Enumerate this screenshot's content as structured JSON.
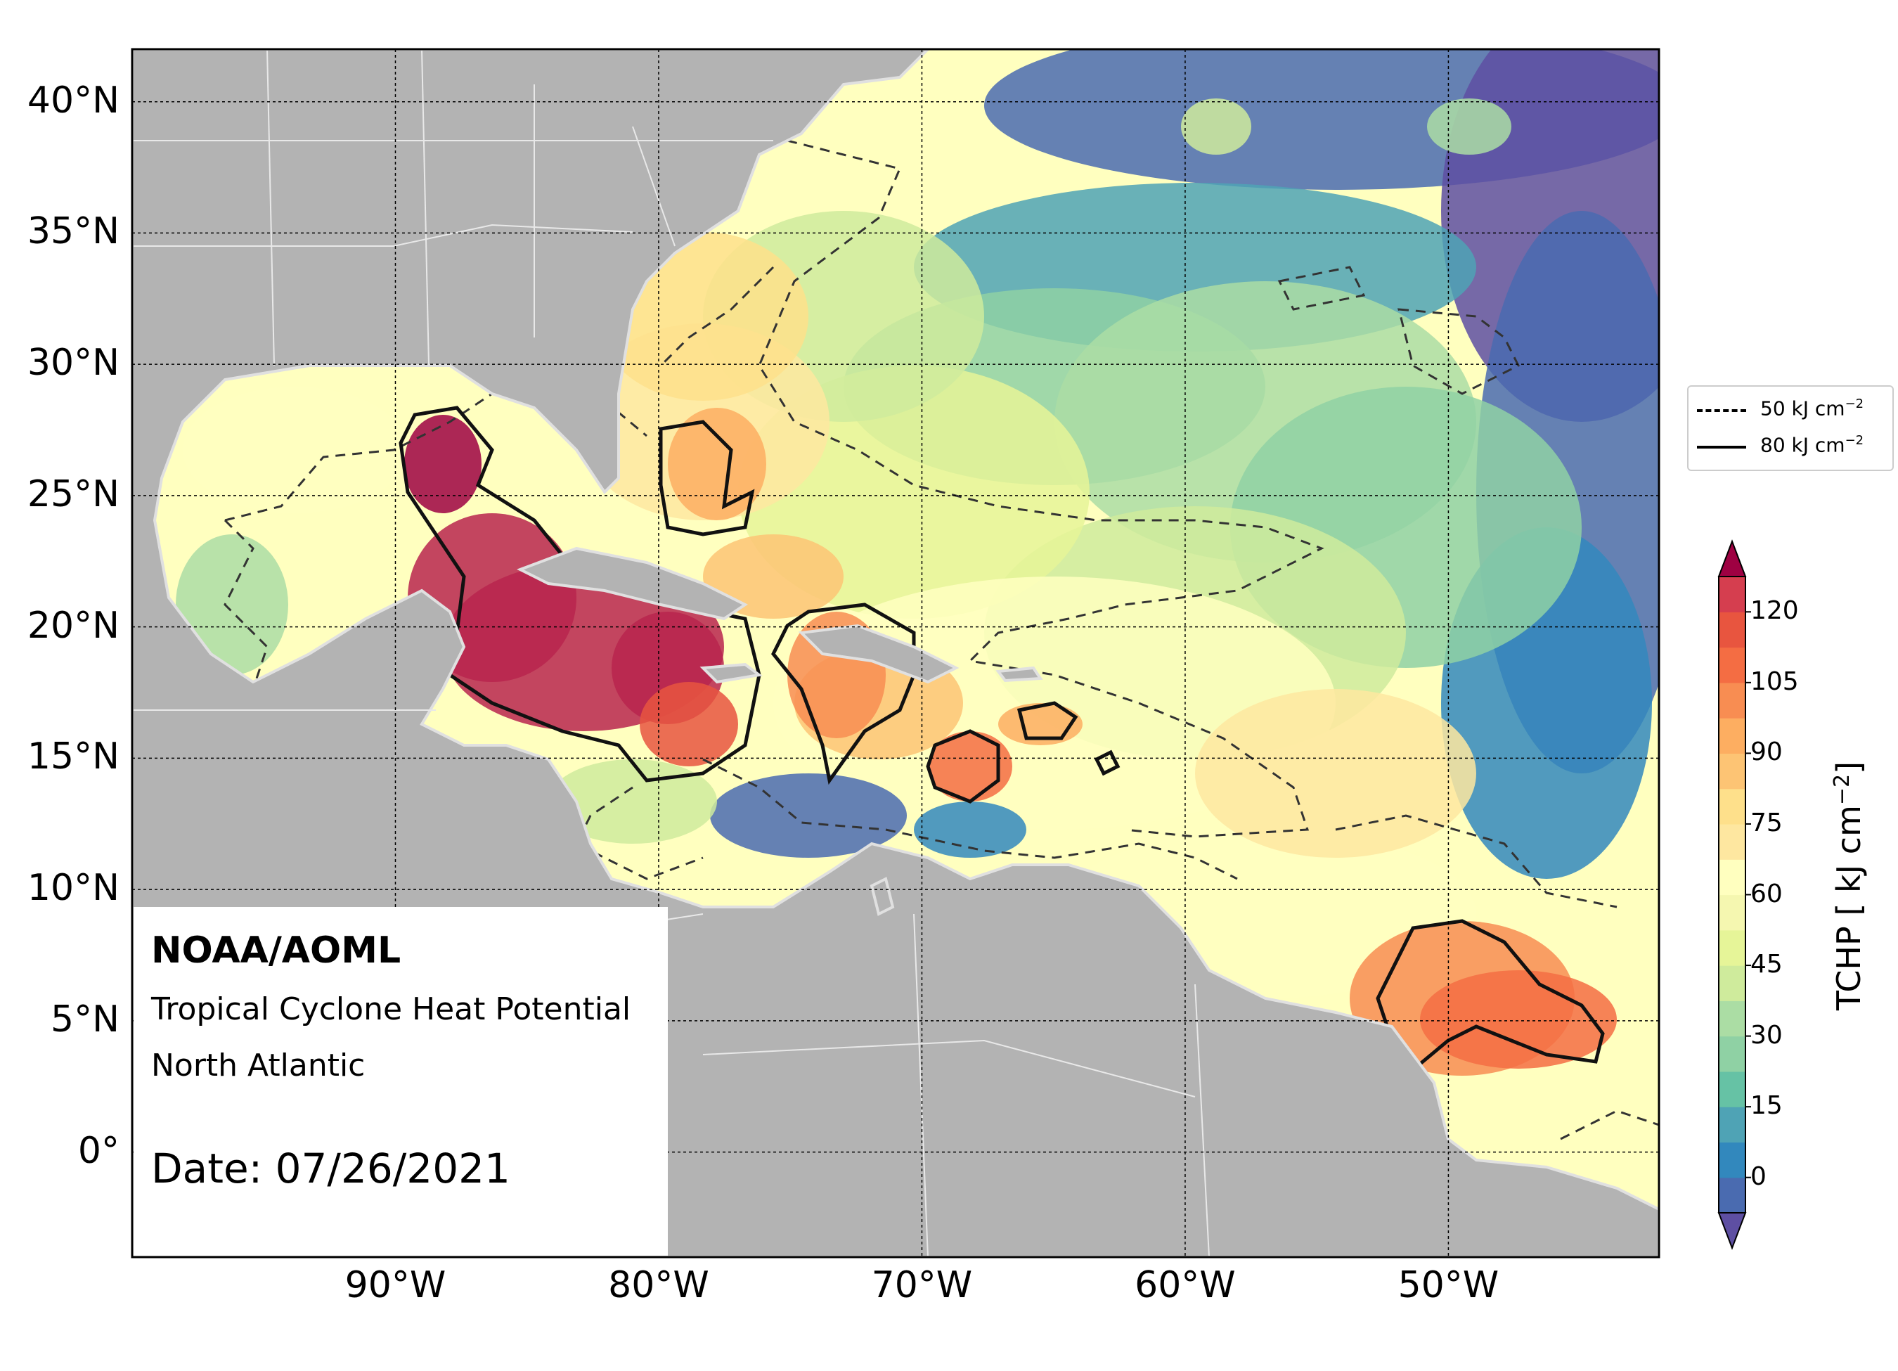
{
  "info": {
    "org": "NOAA/AOML",
    "product": "Tropical Cyclone Heat Potential",
    "region": "North Atlantic",
    "date": "Date: 07/26/2021"
  },
  "axes": {
    "lon_range": [
      -100,
      -42
    ],
    "lat_range": [
      -4,
      42
    ],
    "lat_ticks": [
      {
        "v": 40,
        "label": "40°N"
      },
      {
        "v": 35,
        "label": "35°N"
      },
      {
        "v": 30,
        "label": "30°N"
      },
      {
        "v": 25,
        "label": "25°N"
      },
      {
        "v": 20,
        "label": "20°N"
      },
      {
        "v": 15,
        "label": "15°N"
      },
      {
        "v": 10,
        "label": "10°N"
      },
      {
        "v": 5,
        "label": "5°N"
      },
      {
        "v": 0,
        "label": "0°"
      }
    ],
    "lon_ticks": [
      {
        "v": -90,
        "label": "90°W"
      },
      {
        "v": -80,
        "label": "80°W"
      },
      {
        "v": -70,
        "label": "70°W"
      },
      {
        "v": -60,
        "label": "60°W"
      },
      {
        "v": -50,
        "label": "50°W"
      }
    ]
  },
  "legend": {
    "items": [
      {
        "style": "dashed",
        "label": "50 kJ cm",
        "sup": "−2"
      },
      {
        "style": "solid",
        "label": "80 kJ cm",
        "sup": "−2"
      }
    ]
  },
  "colorbar": {
    "title": "TCHP [ kJ cm",
    "title_sup": "−2",
    "title_end": "]",
    "min": -7.5,
    "max": 127.5,
    "ticks": [
      {
        "v": 120,
        "label": "120"
      },
      {
        "v": 105,
        "label": "105"
      },
      {
        "v": 90,
        "label": "90"
      },
      {
        "v": 75,
        "label": "75"
      },
      {
        "v": 60,
        "label": "60"
      },
      {
        "v": 45,
        "label": "45"
      },
      {
        "v": 30,
        "label": "30"
      },
      {
        "v": 15,
        "label": "15"
      },
      {
        "v": 0,
        "label": "0"
      }
    ],
    "colors": [
      "#5e4fa2",
      "#4a6bb0",
      "#3288bd",
      "#4fa3b5",
      "#66c2a5",
      "#8fd1a4",
      "#abdda4",
      "#cfeb9c",
      "#e6f598",
      "#f5f7b0",
      "#ffffbf",
      "#fee7a0",
      "#fee08b",
      "#fdc474",
      "#fdae61",
      "#f88d52",
      "#f46d43",
      "#e8553f",
      "#d53e4f",
      "#b8244d",
      "#9e0142"
    ],
    "bounds": [
      -7.5,
      0,
      7.5,
      15,
      22.5,
      30,
      37.5,
      45,
      52.5,
      60,
      67.5,
      75,
      82.5,
      90,
      97.5,
      105,
      112.5,
      120,
      127.5
    ]
  }
}
